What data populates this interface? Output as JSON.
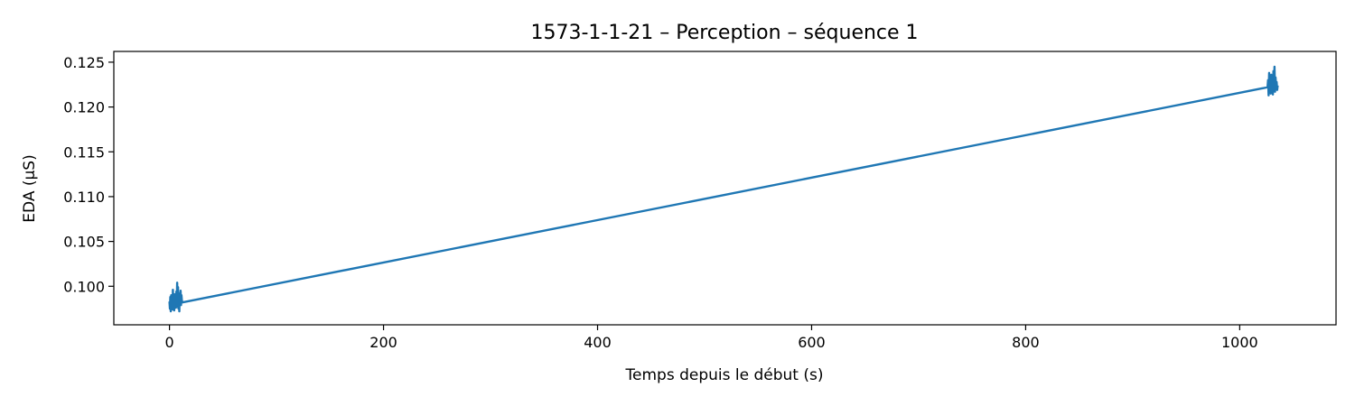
{
  "chart_data": {
    "type": "line",
    "title": "1573-1-1-21 – Perception – séquence 1",
    "xlabel": "Temps depuis le début (s)",
    "ylabel": "EDA (µS)",
    "xlim": [
      -52,
      1090
    ],
    "ylim": [
      0.0957,
      0.1262
    ],
    "xticks": [
      0,
      200,
      400,
      600,
      800,
      1000
    ],
    "xtick_labels": [
      "0",
      "200",
      "400",
      "600",
      "800",
      "1000"
    ],
    "yticks": [
      0.1,
      0.105,
      0.11,
      0.115,
      0.12,
      0.125
    ],
    "ytick_labels": [
      "0.100",
      "0.105",
      "0.110",
      "0.115",
      "0.120",
      "0.125"
    ],
    "grid": false,
    "color": "#1f77b4",
    "series": [
      {
        "x": [
          0.0,
          0.4,
          0.8,
          1.2,
          1.6,
          2.0,
          2.4,
          2.8,
          3.2,
          3.6,
          4.0,
          4.4,
          4.8,
          5.2,
          5.6,
          6.0,
          6.4,
          6.8,
          7.2,
          7.6,
          8.0,
          8.4,
          8.8,
          9.2,
          9.6,
          10.0,
          10.4,
          10.8,
          11.2,
          11.6,
          12.0,
          1026.0,
          1026.5,
          1027.0,
          1027.5,
          1028.0,
          1028.5,
          1029.0,
          1029.5,
          1030.0,
          1030.5,
          1031.0,
          1031.5,
          1032.0,
          1032.5,
          1033.0,
          1033.5,
          1034.0,
          1034.5,
          1035.0,
          1035.5
        ],
        "y": [
          0.0983,
          0.0975,
          0.0988,
          0.0972,
          0.099,
          0.0978,
          0.0985,
          0.0974,
          0.0996,
          0.098,
          0.0987,
          0.0973,
          0.0991,
          0.0979,
          0.0986,
          0.0976,
          0.0994,
          0.0981,
          0.1004,
          0.0977,
          0.0999,
          0.0975,
          0.0988,
          0.0972,
          0.0992,
          0.098,
          0.0995,
          0.0979,
          0.099,
          0.0984,
          0.0982,
          0.1222,
          0.123,
          0.1213,
          0.1238,
          0.1218,
          0.1232,
          0.1215,
          0.1236,
          0.122,
          0.1226,
          0.1214,
          0.124,
          0.1219,
          0.1245,
          0.1217,
          0.1233,
          0.1221,
          0.1228,
          0.1219,
          0.1224
        ]
      }
    ]
  }
}
